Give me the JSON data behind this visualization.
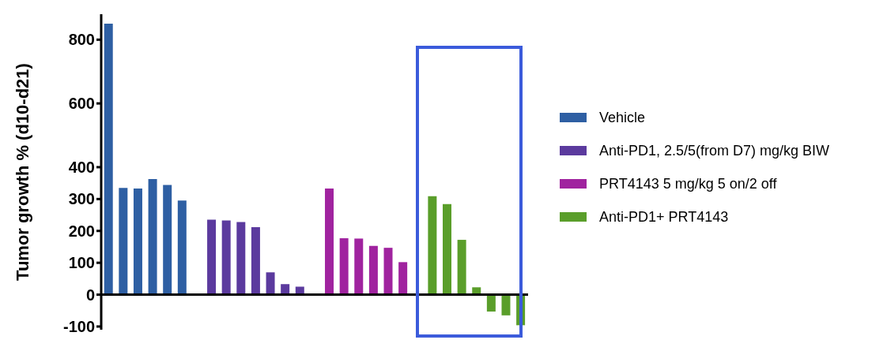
{
  "chart_data": {
    "type": "bar",
    "ylabel": "Tumor growth % (d10-d21)",
    "categories": [
      null,
      null,
      null,
      null,
      null,
      null,
      null,
      null,
      null,
      null,
      null,
      null,
      null,
      null,
      null,
      null,
      null,
      null,
      null,
      null,
      null,
      null,
      null,
      null,
      null,
      null,
      null,
      null,
      null
    ],
    "series": [
      {
        "name": "Vehicle",
        "color": "#2e5fa3",
        "values": [
          850,
          335,
          333,
          363,
          344,
          295,
          null,
          null,
          null,
          null,
          null,
          null,
          null,
          null,
          null,
          null,
          null,
          null,
          null,
          null,
          null,
          null,
          null,
          null,
          null,
          null,
          null,
          null,
          null
        ]
      },
      {
        "name": "Anti-PD1, 2.5/5(from D7) mg/kg BIW",
        "color": "#5b3a9e",
        "values": [
          null,
          null,
          null,
          null,
          null,
          null,
          null,
          235,
          233,
          228,
          212,
          70,
          33,
          25,
          null,
          null,
          null,
          null,
          null,
          null,
          null,
          null,
          null,
          null,
          null,
          null,
          null,
          null,
          null
        ]
      },
      {
        "name": "PRT4143 5 mg/kg 5 on/2 off",
        "color": "#a0239f",
        "values": [
          null,
          null,
          null,
          null,
          null,
          null,
          null,
          null,
          null,
          null,
          null,
          null,
          null,
          null,
          null,
          333,
          177,
          176,
          153,
          147,
          102,
          null,
          null,
          null,
          null,
          null,
          null,
          null,
          null
        ]
      },
      {
        "name": "Anti-PD1+ PRT4143",
        "color": "#5a9e2a",
        "values": [
          null,
          null,
          null,
          null,
          null,
          null,
          null,
          null,
          null,
          null,
          null,
          null,
          null,
          null,
          null,
          null,
          null,
          null,
          null,
          null,
          null,
          null,
          309,
          284,
          172,
          23,
          -53,
          -65,
          -96
        ]
      }
    ],
    "ylim": [
      -110,
      880
    ],
    "yticks": [
      -100,
      0,
      100,
      200,
      300,
      400,
      600,
      800
    ],
    "ref_lines": [
      {
        "axis": "y",
        "value": 0,
        "color": "#000000"
      }
    ],
    "grid": false,
    "legend": "right"
  }
}
